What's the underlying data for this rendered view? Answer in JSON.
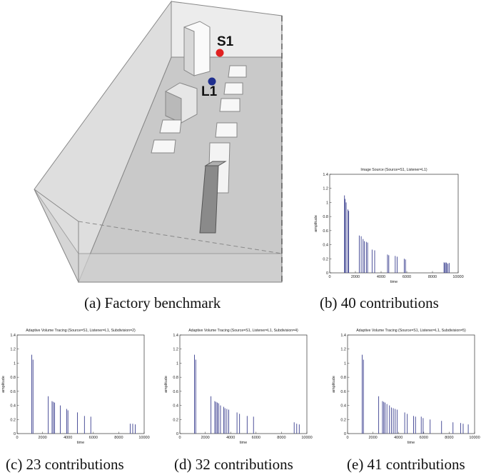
{
  "scene": {
    "source_label": "S1",
    "listener_label": "L1",
    "source_color": "#e02020",
    "listener_color": "#1f2f8f",
    "caption": "(a)  Factory benchmark"
  },
  "captions": {
    "b": "(b)  40 contributions",
    "c": "(c)  23 contributions",
    "d": "(d)  32 contributions",
    "e": "(e)  41 contributions"
  },
  "chart_data": [
    {
      "id": "b",
      "type": "bar",
      "title": "Image Source (Source=S1, Listener=L1)",
      "xlabel": "time",
      "ylabel": "amplitude",
      "xlim": [
        0,
        10000
      ],
      "ylim": [
        0,
        1.4
      ],
      "xticks": [
        "0",
        "2000",
        "4000",
        "6000",
        "8000",
        "10000"
      ],
      "yticks": [
        "0",
        "0.2",
        "0.4",
        "0.6",
        "0.8",
        "1",
        "1.2",
        "1.4"
      ],
      "color": "#3a3f8f",
      "x": [
        1150,
        1200,
        1280,
        1420,
        1480,
        2300,
        2450,
        2600,
        2700,
        2850,
        2950,
        3300,
        3500,
        4500,
        4600,
        5100,
        5250,
        5800,
        5900,
        8900,
        8950,
        9050,
        9100,
        9200,
        9300
      ],
      "y": [
        1.1,
        1.05,
        1.0,
        0.9,
        0.88,
        0.53,
        0.52,
        0.48,
        0.45,
        0.44,
        0.43,
        0.33,
        0.32,
        0.26,
        0.25,
        0.24,
        0.23,
        0.2,
        0.19,
        0.15,
        0.14,
        0.15,
        0.14,
        0.13,
        0.14
      ]
    },
    {
      "id": "c",
      "type": "bar",
      "title": "Adaptive Volume Tracing (Source=S1, Listener=L1, Subdivision=2)",
      "xlabel": "time",
      "ylabel": "amplitude",
      "xlim": [
        0,
        10000
      ],
      "ylim": [
        0,
        1.4
      ],
      "xticks": [
        "0",
        "2000",
        "4000",
        "6000",
        "8000",
        "10000"
      ],
      "yticks": [
        "0",
        "0.2",
        "0.4",
        "0.6",
        "0.8",
        "1",
        "1.2",
        "1.4"
      ],
      "color": "#3a3f8f",
      "x": [
        1150,
        1250,
        2450,
        2750,
        2850,
        2950,
        3400,
        3900,
        4000,
        4750,
        5300,
        5800,
        8900,
        9100,
        9300
      ],
      "y": [
        1.12,
        1.05,
        0.53,
        0.46,
        0.45,
        0.44,
        0.4,
        0.35,
        0.33,
        0.3,
        0.25,
        0.24,
        0.14,
        0.14,
        0.13
      ]
    },
    {
      "id": "d",
      "type": "bar",
      "title": "Adaptive Volume Tracing (Source=S1, Listener=L1, Subdivision=4)",
      "xlabel": "time",
      "ylabel": "amplitude",
      "xlim": [
        0,
        10000
      ],
      "ylim": [
        0,
        1.4
      ],
      "xticks": [
        "0",
        "2000",
        "4000",
        "6000",
        "8000",
        "10000"
      ],
      "yticks": [
        "0",
        "0.2",
        "0.4",
        "0.6",
        "0.8",
        "1",
        "1.2",
        "1.4"
      ],
      "color": "#3a3f8f",
      "x": [
        1150,
        1250,
        2450,
        2750,
        2850,
        2950,
        3050,
        3200,
        3450,
        3550,
        3700,
        3850,
        4500,
        4700,
        5300,
        5800,
        9000,
        9200,
        9400
      ],
      "y": [
        1.12,
        1.05,
        0.53,
        0.46,
        0.45,
        0.44,
        0.43,
        0.4,
        0.38,
        0.36,
        0.35,
        0.34,
        0.3,
        0.28,
        0.25,
        0.24,
        0.16,
        0.14,
        0.13
      ]
    },
    {
      "id": "e",
      "type": "bar",
      "title": "Adaptive Volume Tracing (Source=S1, Listener=L1, Subdivision=5)",
      "xlabel": "time",
      "ylabel": "amplitude",
      "xlim": [
        0,
        10000
      ],
      "ylim": [
        0,
        1.4
      ],
      "xticks": [
        "0",
        "2000",
        "4000",
        "6000",
        "8000",
        "10000"
      ],
      "yticks": [
        "0",
        "0.2",
        "0.4",
        "0.6",
        "0.8",
        "1",
        "1.2",
        "1.4"
      ],
      "color": "#3a3f8f",
      "x": [
        1150,
        1250,
        2450,
        2750,
        2850,
        2950,
        3100,
        3300,
        3450,
        3600,
        3750,
        3900,
        4500,
        4700,
        5200,
        5350,
        5800,
        5950,
        6500,
        7400,
        8300,
        8900,
        9100,
        9500
      ],
      "y": [
        1.12,
        1.05,
        0.53,
        0.46,
        0.45,
        0.44,
        0.42,
        0.4,
        0.37,
        0.36,
        0.35,
        0.34,
        0.3,
        0.28,
        0.25,
        0.24,
        0.24,
        0.22,
        0.2,
        0.18,
        0.16,
        0.15,
        0.14,
        0.13
      ]
    }
  ]
}
